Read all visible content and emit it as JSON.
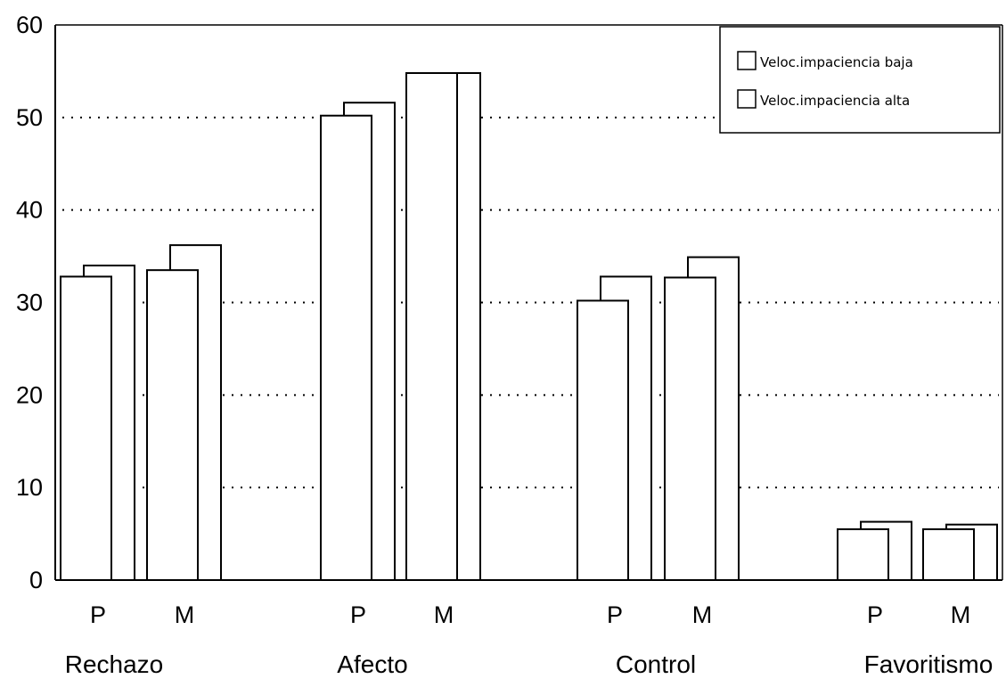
{
  "chart_data": {
    "type": "bar",
    "ylim": [
      0,
      60
    ],
    "yticks": [
      "0",
      "10",
      "20",
      "30",
      "40",
      "50",
      "60"
    ],
    "grid": "horizontal-dotted",
    "legend_position": "top-right",
    "groups": [
      {
        "label": "Rechazo",
        "categories": [
          "P",
          "M"
        ]
      },
      {
        "label": "Afecto",
        "categories": [
          "P",
          "M"
        ]
      },
      {
        "label": "Control",
        "categories": [
          "P",
          "M"
        ]
      },
      {
        "label": "Favoritismo",
        "categories": [
          "P",
          "M"
        ]
      }
    ],
    "series": [
      {
        "name": "Veloc.impaciencia baja",
        "values": [
          32.8,
          33.5,
          50.2,
          54.8,
          30.2,
          32.7,
          5.5,
          5.5
        ]
      },
      {
        "name": "Veloc.impaciencia alta",
        "values": [
          34.0,
          36.2,
          51.6,
          54.8,
          32.8,
          34.9,
          6.3,
          6.0
        ]
      }
    ],
    "colors": {
      "bar_fill": "#ffffff",
      "bar_stroke": "#000000",
      "grid": "#000000"
    }
  }
}
